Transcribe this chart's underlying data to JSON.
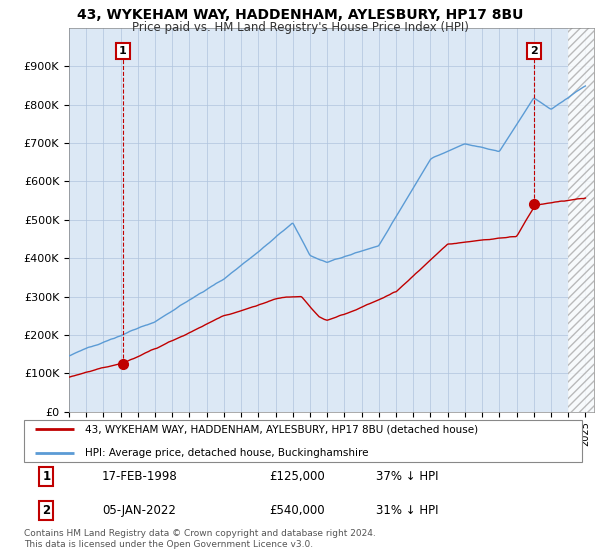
{
  "title": "43, WYKEHAM WAY, HADDENHAM, AYLESBURY, HP17 8BU",
  "subtitle": "Price paid vs. HM Land Registry's House Price Index (HPI)",
  "xlim": [
    1995,
    2025.5
  ],
  "ylim": [
    0,
    1000000
  ],
  "yticks": [
    0,
    100000,
    200000,
    300000,
    400000,
    500000,
    600000,
    700000,
    800000,
    900000
  ],
  "ytick_labels": [
    "£0",
    "£100K",
    "£200K",
    "£300K",
    "£400K",
    "£500K",
    "£600K",
    "£700K",
    "£800K",
    "£900K"
  ],
  "hpi_color": "#5b9bd5",
  "price_color": "#c00000",
  "plot_bg_color": "#dce8f5",
  "hatch_start": 2024.0,
  "marker1_year": 1998.13,
  "marker1_price": 125000,
  "marker2_year": 2022.02,
  "marker2_price": 540000,
  "legend_line1": "43, WYKEHAM WAY, HADDENHAM, AYLESBURY, HP17 8BU (detached house)",
  "legend_line2": "HPI: Average price, detached house, Buckinghamshire",
  "footer": "Contains HM Land Registry data © Crown copyright and database right 2024.\nThis data is licensed under the Open Government Licence v3.0.",
  "grid_color": "#b0c4de"
}
